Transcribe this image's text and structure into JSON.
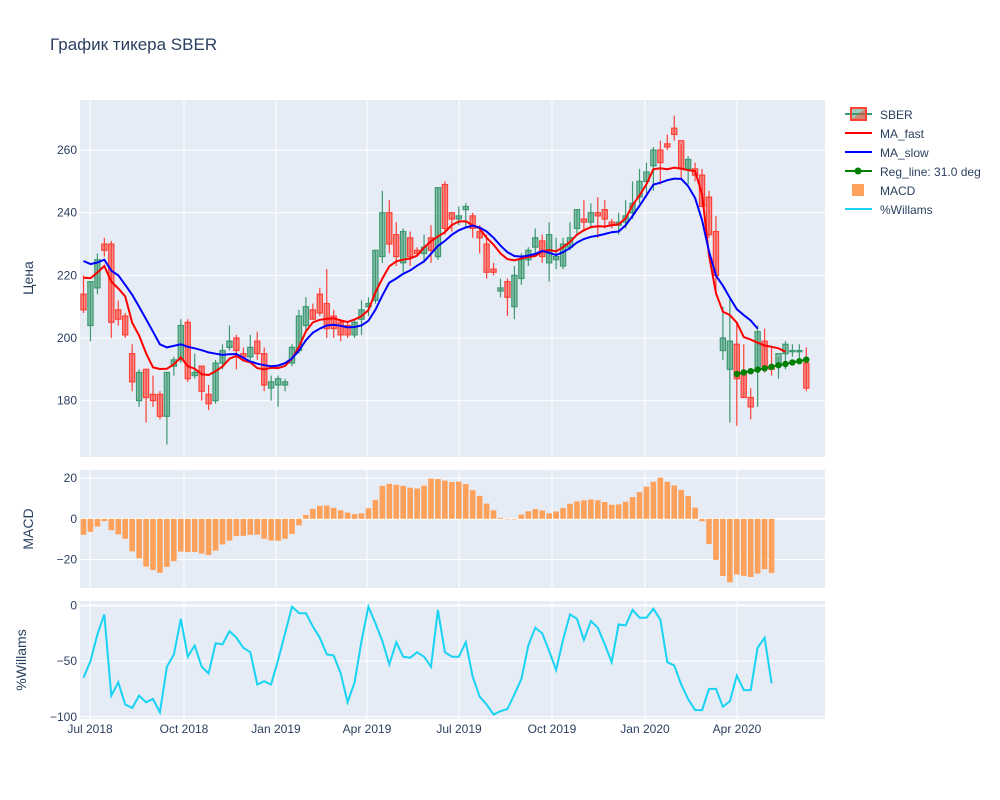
{
  "chart_data": {
    "type": "candlestick",
    "title": "График тикера SBER",
    "x_ticks": [
      "Jul 2018",
      "Oct 2018",
      "Jan 2019",
      "Apr 2019",
      "Jul 2019",
      "Oct 2019",
      "Jan 2020",
      "Apr 2020"
    ],
    "colors": {
      "up": "#3d9970",
      "down": "#ff4136",
      "ma_fast": "#ff0000",
      "ma_slow": "#0000ff",
      "reg_line": "#008000",
      "macd": "#ffa15a",
      "willams": "#19d3f3",
      "plot_bg": "#e5ecf6",
      "grid": "#ffffff",
      "text": "#2a3f5f"
    },
    "legend": {
      "position": "right",
      "entries": [
        "SBER",
        "MA_fast",
        "MA_slow",
        "Reg_line: 31.0 deg",
        "MACD",
        "%Willams"
      ]
    },
    "price_panel": {
      "ylabel": "Цена",
      "ylim": [
        162,
        276
      ],
      "yticks": [
        180,
        200,
        220,
        240,
        260
      ],
      "candles": [
        [
          214,
          220,
          208,
          209
        ],
        [
          204,
          218,
          199,
          218
        ],
        [
          216,
          227,
          214,
          225
        ],
        [
          230,
          232,
          226,
          228
        ],
        [
          230,
          231,
          200,
          205
        ],
        [
          209,
          212,
          204,
          206
        ],
        [
          207,
          208,
          200,
          201
        ],
        [
          195,
          198,
          183,
          186
        ],
        [
          180,
          190,
          178,
          189
        ],
        [
          190,
          190,
          173,
          181
        ],
        [
          182,
          188,
          178,
          180
        ],
        [
          182,
          183,
          174,
          175
        ],
        [
          175,
          189,
          166,
          189
        ],
        [
          191,
          194,
          188,
          193
        ],
        [
          193,
          206,
          192,
          204
        ],
        [
          205,
          206,
          186,
          187
        ],
        [
          188,
          195,
          187,
          189
        ],
        [
          191,
          191,
          180,
          183
        ],
        [
          182,
          185,
          177,
          179
        ],
        [
          180,
          193,
          179,
          192
        ],
        [
          192,
          198,
          190,
          196
        ],
        [
          197,
          204,
          196,
          199
        ],
        [
          200,
          201,
          190,
          196
        ],
        [
          195,
          197,
          193,
          194
        ],
        [
          194,
          201,
          193,
          197
        ],
        [
          199,
          202,
          193,
          195
        ],
        [
          195,
          197,
          183,
          185
        ],
        [
          184,
          188,
          180,
          186
        ],
        [
          185,
          188,
          178,
          187
        ],
        [
          185,
          187,
          183,
          186
        ],
        [
          192,
          198,
          191,
          197
        ],
        [
          196,
          209,
          195,
          207
        ],
        [
          204,
          213,
          202,
          210
        ],
        [
          209,
          211,
          206,
          206
        ],
        [
          214,
          216,
          207,
          208
        ],
        [
          211,
          222,
          200,
          203
        ],
        [
          207,
          209,
          200,
          203
        ],
        [
          205,
          206,
          199,
          201
        ],
        [
          204,
          205,
          200,
          201
        ],
        [
          201,
          206,
          200,
          205
        ],
        [
          206,
          212,
          201,
          209
        ],
        [
          210,
          213,
          207,
          211
        ],
        [
          212,
          228,
          211,
          228
        ],
        [
          226,
          247,
          224,
          240
        ],
        [
          240,
          244,
          227,
          230
        ],
        [
          233,
          237,
          223,
          226
        ],
        [
          224,
          235,
          221,
          234
        ],
        [
          232,
          234,
          223,
          226
        ],
        [
          228,
          229,
          226,
          227
        ],
        [
          227,
          233,
          224,
          229
        ],
        [
          232,
          236,
          224,
          228
        ],
        [
          226,
          248,
          225,
          248
        ],
        [
          249,
          250,
          233,
          235
        ],
        [
          240,
          240,
          234,
          238
        ],
        [
          238,
          242,
          236,
          239
        ],
        [
          241,
          243,
          235,
          242
        ],
        [
          239,
          240,
          232,
          235
        ],
        [
          234,
          236,
          227,
          232
        ],
        [
          230,
          233,
          219,
          221
        ],
        [
          222,
          224,
          220,
          221
        ],
        [
          215,
          219,
          213,
          216
        ],
        [
          218,
          219,
          207,
          213
        ],
        [
          210,
          223,
          206,
          220
        ],
        [
          219,
          227,
          217,
          225
        ],
        [
          225,
          229,
          223,
          228
        ],
        [
          229,
          235,
          227,
          232
        ],
        [
          231,
          233,
          224,
          226
        ],
        [
          224,
          237,
          218,
          233
        ],
        [
          225,
          232,
          222,
          226
        ],
        [
          223,
          232,
          222,
          230
        ],
        [
          229,
          237,
          228,
          232
        ],
        [
          235,
          241,
          233,
          241
        ],
        [
          238,
          244,
          234,
          237
        ],
        [
          237,
          243,
          235,
          240
        ],
        [
          240,
          245,
          232,
          239
        ],
        [
          241,
          244,
          235,
          238
        ],
        [
          237,
          238,
          235,
          236
        ],
        [
          236,
          240,
          233,
          237
        ],
        [
          237,
          244,
          235,
          239
        ],
        [
          240,
          250,
          238,
          243
        ],
        [
          245,
          254,
          243,
          250
        ],
        [
          250,
          256,
          245,
          253
        ],
        [
          255,
          261,
          247,
          260
        ],
        [
          260,
          263,
          249,
          256
        ],
        [
          262,
          265,
          260,
          261
        ],
        [
          267,
          271,
          263,
          265
        ],
        [
          263,
          262,
          251,
          254
        ],
        [
          254,
          258,
          249,
          257
        ],
        [
          254,
          256,
          250,
          252
        ],
        [
          252,
          254,
          242,
          242
        ],
        [
          245,
          247,
          232,
          233
        ],
        [
          234,
          239,
          214,
          220
        ],
        [
          196,
          210,
          193,
          200
        ],
        [
          190,
          213,
          173,
          199
        ],
        [
          198,
          205,
          172,
          187
        ],
        [
          189,
          198,
          181,
          181
        ],
        [
          181,
          184,
          174,
          178
        ],
        [
          190,
          204,
          178,
          202
        ],
        [
          199,
          203,
          189,
          191
        ],
        [
          191,
          197,
          188,
          190
        ],
        [
          191,
          194,
          187,
          195
        ],
        [
          195,
          199,
          190,
          198
        ],
        [
          196,
          198,
          194,
          196
        ],
        [
          196,
          198,
          193,
          196
        ],
        [
          192,
          197,
          183,
          184
        ]
      ],
      "ma_fast": [
        219.3,
        219.1,
        220.9,
        223.0,
        218.0,
        215.8,
        213.3,
        204.9,
        200.8,
        195.1,
        190.6,
        190.1,
        190.2,
        191.6,
        193.8,
        191.0,
        190.2,
        188.4,
        188.2,
        189.4,
        190.9,
        193.4,
        194.3,
        192.8,
        192.2,
        190.4,
        190.0,
        190.5,
        190.4,
        191.1,
        193.4,
        197.2,
        202.1,
        205.0,
        205.8,
        206.1,
        206.3,
        205.6,
        205.1,
        205.9,
        207.0,
        208.9,
        214.6,
        219.0,
        222.9,
        224.5,
        225.0,
        225.4,
        226.3,
        228.9,
        230.9,
        232.4,
        233.8,
        236.1,
        237.2,
        237.3,
        236.0,
        235.0,
        232.0,
        229.8,
        227.0,
        225.2,
        224.8,
        225.4,
        225.9,
        226.2,
        227.6,
        228.1,
        227.7,
        229.0,
        230.7,
        233.0,
        234.4,
        235.4,
        235.7,
        235.6,
        236.0,
        236.3,
        238.2,
        242.5,
        245.5,
        249.1,
        253.9,
        254.2,
        253.9,
        254.4,
        254.1,
        253.6,
        253.3,
        245.9,
        226.4,
        214.3,
        208.4,
        207.3,
        204.9,
        200.3,
        199.5,
        198.5,
        197.6,
        197.2,
        196.7,
        195.6
      ],
      "ma_slow": [
        224.6,
        223.6,
        224.1,
        225.0,
        221.5,
        220.0,
        217.0,
        213.8,
        210.0,
        206.0,
        202.0,
        198.0,
        197.0,
        197.5,
        198.0,
        197.2,
        196.7,
        196.1,
        195.4,
        195.0,
        194.6,
        194.8,
        194.9,
        193.7,
        192.5,
        191.8,
        191.3,
        191.0,
        191.2,
        192.0,
        193.5,
        196.0,
        199.3,
        201.7,
        203.0,
        204.0,
        204.2,
        203.9,
        203.4,
        203.5,
        204.0,
        205.5,
        209.0,
        213.6,
        217.7,
        219.0,
        220.5,
        221.6,
        223.1,
        224.5,
        226.9,
        229.4,
        231.0,
        233.0,
        234.4,
        235.3,
        235.9,
        235.3,
        234.0,
        232.0,
        229.5,
        227.4,
        226.2,
        226.0,
        226.3,
        226.9,
        227.8,
        227.2,
        226.5,
        227.4,
        228.7,
        230.5,
        231.6,
        232.3,
        232.7,
        233.2,
        233.8,
        234.0,
        236.0,
        239.0,
        242.2,
        245.6,
        249.0,
        249.6,
        250.4,
        250.9,
        250.8,
        248.5,
        244.7,
        237.6,
        227.7,
        219.9,
        216.7,
        212.8,
        209.2,
        207.3,
        205.6,
        203.0
      ],
      "reg_line": [
        188.5,
        189.0,
        189.4,
        189.9,
        190.3,
        190.8,
        191.3,
        191.7,
        192.2,
        192.6,
        193.1
      ]
    },
    "macd_panel": {
      "ylabel": "MACD",
      "ylim": [
        -34,
        24
      ],
      "yticks": [
        -20,
        0,
        20
      ],
      "values": [
        -7.8,
        -6.4,
        -3.8,
        -1.1,
        -5.6,
        -7.6,
        -9.8,
        -16,
        -19.4,
        -23.5,
        -25.2,
        -26.5,
        -23.6,
        -20.8,
        -16.1,
        -16.3,
        -16.3,
        -17.1,
        -17.8,
        -15.6,
        -12.6,
        -10.7,
        -8.5,
        -8.4,
        -7.9,
        -7.8,
        -9.8,
        -10.7,
        -10.8,
        -9.8,
        -7.4,
        -3.2,
        1.9,
        4.9,
        6.4,
        6.5,
        5.4,
        4.2,
        3.1,
        2.3,
        2.7,
        5.2,
        9.3,
        16.2,
        17.2,
        16.7,
        16.2,
        15.3,
        14.9,
        16.3,
        19.8,
        19.6,
        18.8,
        18.1,
        18.3,
        17.1,
        14.1,
        11.3,
        7.5,
        4.2,
        0.5,
        -0.1,
        -0.1,
        2.1,
        3.7,
        4.8,
        4.1,
        2.7,
        3.6,
        5.3,
        7.4,
        8.6,
        9.1,
        9.5,
        9.1,
        8.3,
        6.9,
        7.1,
        8.4,
        10.7,
        13.1,
        15.8,
        18.2,
        20.2,
        18.2,
        16.4,
        14.2,
        11.2,
        5.5,
        -1.2,
        -12.4,
        -20.2,
        -28.1,
        -31.2,
        -27.4,
        -28.0,
        -28.6,
        -26.9,
        -24.8,
        -26.6
      ]
    },
    "willams_panel": {
      "ylabel": "%Willams",
      "ylim": [
        -102,
        4
      ],
      "yticks": [
        -100,
        -50,
        0
      ],
      "values": [
        -65,
        -50,
        -26,
        -8,
        -81,
        -69,
        -89,
        -92,
        -81,
        -87,
        -84,
        -96,
        -55,
        -44,
        -12,
        -46,
        -36,
        -55,
        -61,
        -34,
        -35,
        -23,
        -29,
        -38,
        -42,
        -71,
        -68,
        -71,
        -49,
        -25,
        -1,
        -7,
        -7,
        -19,
        -29,
        -44,
        -45,
        -61,
        -87,
        -69,
        -32,
        -1,
        -16,
        -32,
        -53,
        -33,
        -46,
        -47,
        -42,
        -46,
        -55,
        -4,
        -42,
        -46,
        -46,
        -33,
        -64,
        -82,
        -89,
        -98,
        -95,
        -93,
        -80,
        -66,
        -36,
        -20,
        -25,
        -41,
        -58,
        -31,
        -8,
        -12,
        -31,
        -14,
        -20,
        -35,
        -51,
        -17,
        -18,
        -4,
        -11,
        -11,
        -3,
        -13,
        -51,
        -54,
        -71,
        -84,
        -94,
        -94,
        -75,
        -75,
        -91,
        -86,
        -63,
        -76,
        -76,
        -38,
        -29,
        -70
      ]
    }
  }
}
